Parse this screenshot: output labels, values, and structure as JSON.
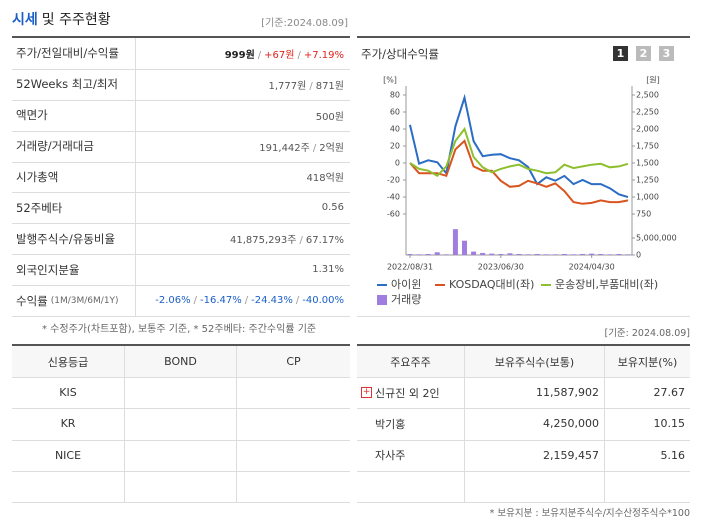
{
  "header": {
    "title": "시세",
    "subtitle": "및 주주현황",
    "date": "[기준:2024.08.09]"
  },
  "summary": {
    "rows": [
      {
        "label": "주가/전일대비/수익률",
        "parts": [
          {
            "text": "999원",
            "color": "#222222",
            "bold": true
          },
          {
            "text": "/"
          },
          {
            "text": "+67원",
            "color": "#e0241b"
          },
          {
            "text": "/"
          },
          {
            "text": "+7.19%",
            "color": "#e0241b"
          }
        ]
      },
      {
        "label": "52Weeks 최고/최저",
        "parts": [
          {
            "text": "1,777원"
          },
          {
            "text": "/"
          },
          {
            "text": "871원"
          }
        ]
      },
      {
        "label": "액면가",
        "parts": [
          {
            "text": "500원"
          }
        ]
      },
      {
        "label": "거래량/거래대금",
        "parts": [
          {
            "text": "191,442주"
          },
          {
            "text": "/"
          },
          {
            "text": "2억원"
          }
        ]
      },
      {
        "label": "시가총액",
        "parts": [
          {
            "text": "418억원"
          }
        ]
      },
      {
        "label": "52주베타",
        "parts": [
          {
            "text": "0.56"
          }
        ]
      },
      {
        "label": "발행주식수/유동비율",
        "parts": [
          {
            "text": "41,875,293주"
          },
          {
            "text": "/"
          },
          {
            "text": "67.17%"
          }
        ]
      },
      {
        "label": "외국인지분율",
        "parts": [
          {
            "text": "1.31%"
          }
        ]
      },
      {
        "label": "수익률",
        "note": "(1M/3M/6M/1Y)",
        "parts": [
          {
            "text": "-2.06%",
            "color": "#1a5fc8"
          },
          {
            "text": "/"
          },
          {
            "text": "-16.47%",
            "color": "#1a5fc8"
          },
          {
            "text": "/"
          },
          {
            "text": "-24.43%",
            "color": "#1a5fc8"
          },
          {
            "text": "/"
          },
          {
            "text": "-40.00%",
            "color": "#1a5fc8"
          }
        ]
      }
    ],
    "footnote": "* 수정주가(차트포함), 보통주 기준, * 52주베타: 주간수익률 기준"
  },
  "chart_panel": {
    "title": "주가/상대수익률",
    "tabs": [
      "1",
      "2",
      "3"
    ]
  },
  "chart_data": {
    "type": "line",
    "ylabel": "[%]",
    "y2label": "[원]",
    "categories": [
      "2022/08/31",
      null,
      null,
      null,
      null,
      null,
      null,
      null,
      null,
      null,
      "2023/06/30",
      null,
      null,
      null,
      null,
      null,
      null,
      null,
      null,
      null,
      "2024/04/30",
      null,
      null,
      null,
      null
    ],
    "ylim": [
      -60,
      80
    ],
    "yticks": [
      80,
      60,
      40,
      20,
      0,
      -20,
      -40,
      -60
    ],
    "y2lim": [
      750,
      2500
    ],
    "y2ticks": [
      {
        "value": 2500,
        "label": "2,500"
      },
      {
        "value": 2250,
        "label": "2,250"
      },
      {
        "value": 2000,
        "label": "2,000"
      },
      {
        "value": 1750,
        "label": "1,750"
      },
      {
        "value": 1500,
        "label": "1,500"
      },
      {
        "value": 1250,
        "label": "1,250"
      },
      {
        "value": 1000,
        "label": "1,000"
      },
      750
    ],
    "y3lim": [
      0,
      5000000
    ],
    "y3ticks": [
      {
        "value": 5000000,
        "label": "5,000,000"
      },
      0
    ],
    "series": [
      {
        "name": "아이윈",
        "color": "#2b6cc4",
        "axis": "y2",
        "values": [
          2060,
          1490,
          1540,
          1510,
          1350,
          2040,
          2460,
          1820,
          1600,
          1620,
          1630,
          1570,
          1540,
          1440,
          1190,
          1290,
          1240,
          1310,
          1190,
          1250,
          1190,
          1190,
          1130,
          1040,
          999
        ]
      },
      {
        "name": "KOSDAQ대비(좌)",
        "color": "#d9541e",
        "values": [
          0,
          -12,
          -12,
          -12,
          -15,
          16,
          26,
          -4,
          -9,
          -9,
          -21,
          -28,
          -27,
          -21,
          -24,
          -28,
          -24,
          -33,
          -46,
          -48,
          -47,
          -44,
          -46,
          -46,
          -44
        ]
      },
      {
        "name": "운송장비,부품대비(좌)",
        "color": "#8dbf2e",
        "values": [
          0,
          -7,
          -9,
          -15,
          -4,
          26,
          40,
          7,
          -5,
          -11,
          -7,
          -4,
          -2,
          -7,
          -9,
          -12,
          -11,
          -2,
          -6,
          -4,
          -2,
          -1,
          -5,
          -4,
          -1
        ]
      },
      {
        "name": "거래량",
        "color": "#a07ee0",
        "axis": "y3",
        "type": "bar",
        "values": [
          300000,
          200000,
          300000,
          800000,
          200000,
          7600000,
          4200000,
          1000000,
          600000,
          400000,
          300000,
          500000,
          300000,
          200000,
          300000,
          200000,
          200000,
          300000,
          200000,
          300000,
          400000,
          300000,
          200000,
          300000,
          200000
        ]
      }
    ]
  },
  "credit": {
    "headers": [
      "신용등급",
      "BOND",
      "CP"
    ],
    "rows": [
      [
        "KIS",
        "",
        ""
      ],
      [
        "KR",
        "",
        ""
      ],
      [
        "NICE",
        "",
        ""
      ],
      [
        "",
        "",
        ""
      ]
    ]
  },
  "holders": {
    "date": "[기준: 2024.08.09]",
    "headers": [
      "주요주주",
      "보유주식수(보통)",
      "보유지분(%)"
    ],
    "rows": [
      {
        "cells": [
          "신규진 외 2인",
          "11,587,902",
          "27.67"
        ],
        "expandable": true
      },
      {
        "cells": [
          "박기홍",
          "4,250,000",
          "10.15"
        ]
      },
      {
        "cells": [
          "자사주",
          "2,159,457",
          "5.16"
        ]
      },
      {
        "cells": [
          "",
          "",
          ""
        ]
      }
    ],
    "footnote": "* 보유지분 : 보유지분주식수/지수산정주식수*100"
  }
}
